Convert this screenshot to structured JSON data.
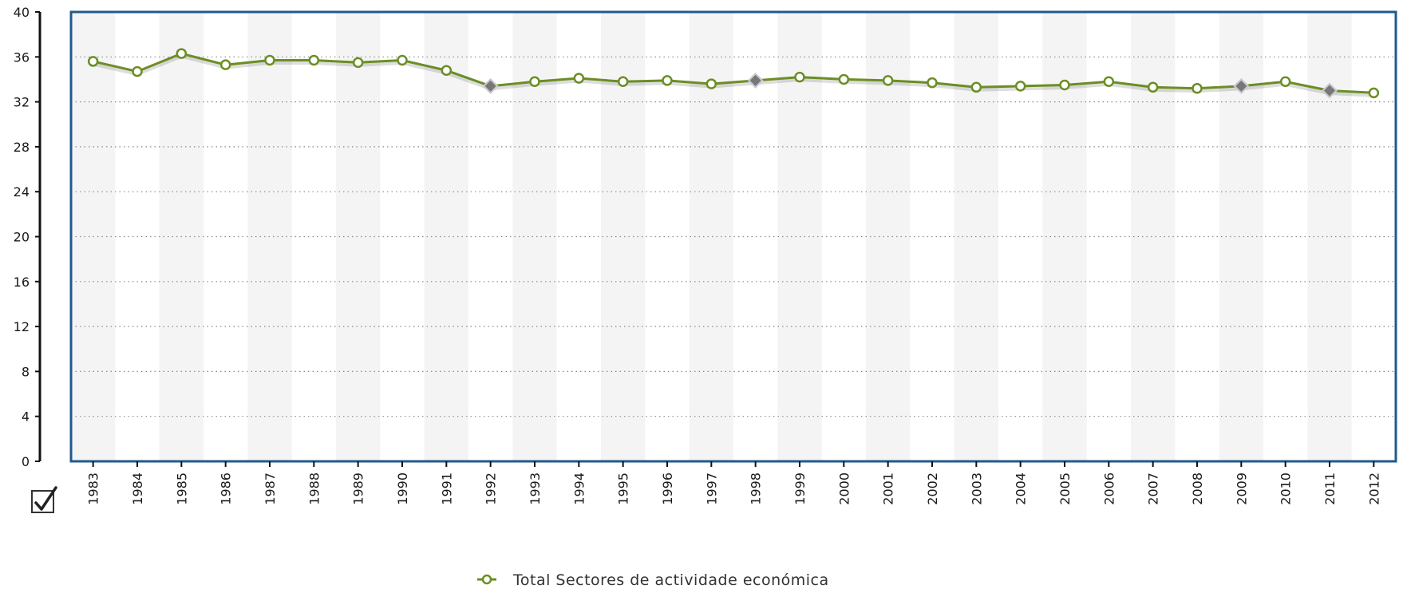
{
  "chart_data": {
    "type": "line",
    "title": "",
    "xlabel": "",
    "ylabel": "",
    "ylim": [
      0,
      40
    ],
    "yticks": [
      0,
      4,
      8,
      12,
      16,
      20,
      24,
      28,
      32,
      36,
      40
    ],
    "grid": "horizontal dotted",
    "legend_position": "bottom-center",
    "x": [
      "1983",
      "1984",
      "1985",
      "1986",
      "1987",
      "1988",
      "1989",
      "1990",
      "1991",
      "1992",
      "1993",
      "1994",
      "1995",
      "1996",
      "1997",
      "1998",
      "1999",
      "2000",
      "2001",
      "2002",
      "2003",
      "2004",
      "2005",
      "2006",
      "2007",
      "2008",
      "2009",
      "2010",
      "2011",
      "2012"
    ],
    "series": [
      {
        "name": "Total Sectores de actividade económica",
        "color": "#6b8e23",
        "values": [
          35.6,
          34.7,
          36.3,
          35.3,
          35.7,
          35.7,
          35.5,
          35.7,
          34.8,
          33.4,
          33.8,
          34.1,
          33.8,
          33.9,
          33.6,
          33.9,
          34.2,
          34.0,
          33.9,
          33.7,
          33.3,
          33.4,
          33.5,
          33.8,
          33.3,
          33.2,
          33.4,
          33.8,
          33.0,
          32.8
        ],
        "highlighted_points": [
          "1992",
          "1998",
          "2009",
          "2011"
        ]
      }
    ]
  },
  "checkbox": {
    "checked": true,
    "icon": "checkmark-icon"
  },
  "colors": {
    "frame": "#1f5b8c",
    "band": "#f4f4f5",
    "line": "#6b8e23",
    "marker_fill": "#ffffff",
    "highlight_marker": "#777777"
  }
}
